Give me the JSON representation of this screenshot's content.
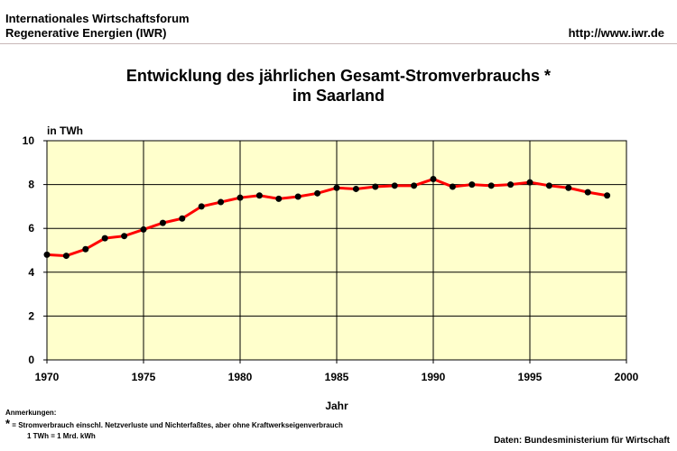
{
  "header": {
    "org_line1": "Internationales Wirtschaftsforum",
    "org_line2": "Regenerative Energien (IWR)",
    "url": "http://www.iwr.de"
  },
  "chart_data": {
    "type": "line",
    "title_line1": "Entwicklung des jährlichen Gesamt-Stromverbrauchs *",
    "title_line2": "im Saarland",
    "ylabel": "in TWh",
    "xlabel": "Jahr",
    "xlim": [
      1970,
      2000
    ],
    "ylim": [
      0,
      10
    ],
    "x_ticks": [
      1970,
      1975,
      1980,
      1985,
      1990,
      1995,
      2000
    ],
    "y_ticks": [
      0,
      2,
      4,
      6,
      8,
      10
    ],
    "grid": true,
    "line_color": "#ff0000",
    "marker_color": "#000000",
    "plot_background": "#ffffcc",
    "x": [
      1970,
      1971,
      1972,
      1973,
      1974,
      1975,
      1976,
      1977,
      1978,
      1979,
      1980,
      1981,
      1982,
      1983,
      1984,
      1985,
      1986,
      1987,
      1988,
      1989,
      1990,
      1991,
      1992,
      1993,
      1994,
      1995,
      1996,
      1997,
      1998,
      1999
    ],
    "y": [
      4.8,
      4.75,
      5.05,
      5.55,
      5.65,
      5.95,
      6.25,
      6.45,
      7.0,
      7.2,
      7.4,
      7.5,
      7.35,
      7.45,
      7.6,
      7.85,
      7.8,
      7.9,
      7.95,
      7.95,
      8.25,
      7.9,
      8.0,
      7.95,
      8.0,
      8.1,
      7.95,
      7.85,
      7.65,
      7.5
    ]
  },
  "notes": {
    "heading": "Anmerkungen:",
    "star": "*",
    "line1": "= Stromverbrauch einschl. Netzverluste und Nichterfaßtes, aber ohne Kraftwerkseigenverbrauch",
    "line2": "1 TWh = 1 Mrd. kWh"
  },
  "source": "Daten: Bundesministerium für Wirtschaft"
}
